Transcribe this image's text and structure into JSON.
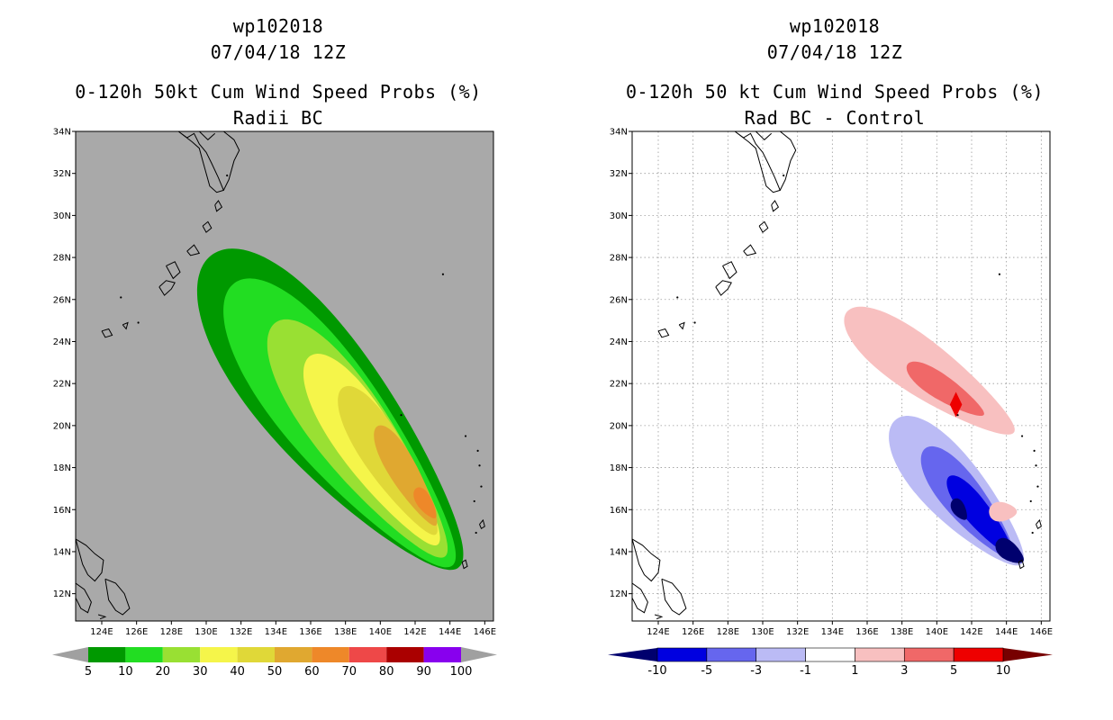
{
  "chart_data": [
    {
      "type": "heatmap",
      "storm_id": "wp102018",
      "datetime": "07/04/18 12Z",
      "title": "0-120h 50kt Cum Wind Speed Probs (%)",
      "subtitle": "Radii BC",
      "x_ticks": [
        "124E",
        "126E",
        "128E",
        "130E",
        "132E",
        "134E",
        "136E",
        "138E",
        "140E",
        "142E",
        "144E",
        "146E"
      ],
      "y_ticks": [
        "12N",
        "14N",
        "16N",
        "18N",
        "20N",
        "22N",
        "24N",
        "26N",
        "28N",
        "30N",
        "32N",
        "34N"
      ],
      "xlim": [
        122.5,
        146.5
      ],
      "ylim": [
        10.7,
        34
      ],
      "background_color": "#a9a9a9",
      "colorbar": {
        "labels": [
          "5",
          "10",
          "20",
          "30",
          "40",
          "50",
          "60",
          "70",
          "80",
          "90",
          "100"
        ],
        "colors": [
          "#009900",
          "#22dd22",
          "#99e033",
          "#f5f54a",
          "#e0d838",
          "#e0a830",
          "#ee8829",
          "#ee4848",
          "#aa0000",
          "#8800ee"
        ],
        "end_arrow_color": "#a0a0a0"
      },
      "contour_levels": [
        {
          "level": 5,
          "color": "#009900",
          "center": [
            137.3,
            20.6
          ],
          "half_len": 10.3,
          "half_wid": 3.2,
          "angle_deg": -45
        },
        {
          "level": 10,
          "color": "#22dd22",
          "center": [
            137.8,
            20.0
          ],
          "half_len": 9.2,
          "half_wid": 2.6,
          "angle_deg": -46
        },
        {
          "level": 20,
          "color": "#99e033",
          "center": [
            138.8,
            19.3
          ],
          "half_len": 7.4,
          "half_wid": 2.0,
          "angle_deg": -48
        },
        {
          "level": 30,
          "color": "#f5f54a",
          "center": [
            139.6,
            18.8
          ],
          "half_len": 5.8,
          "half_wid": 1.55,
          "angle_deg": -50
        },
        {
          "level": 40,
          "color": "#e0d838",
          "center": [
            140.5,
            18.3
          ],
          "half_len": 4.4,
          "half_wid": 1.15,
          "angle_deg": -52
        },
        {
          "level": 50,
          "color": "#e0a830",
          "center": [
            141.5,
            17.6
          ],
          "half_len": 2.9,
          "half_wid": 0.75,
          "angle_deg": -54
        },
        {
          "level": 60,
          "color": "#ee8829",
          "center": [
            142.6,
            16.3
          ],
          "half_len": 0.9,
          "half_wid": 0.4,
          "angle_deg": -50
        }
      ]
    },
    {
      "type": "heatmap",
      "storm_id": "wp102018",
      "datetime": "07/04/18 12Z",
      "title": "0-120h 50 kt Cum Wind Speed Probs (%)",
      "subtitle": "Rad BC - Control",
      "x_ticks": [
        "124E",
        "126E",
        "128E",
        "130E",
        "132E",
        "134E",
        "136E",
        "138E",
        "140E",
        "142E",
        "144E",
        "146E"
      ],
      "y_ticks": [
        "12N",
        "14N",
        "16N",
        "18N",
        "20N",
        "22N",
        "24N",
        "26N",
        "28N",
        "30N",
        "32N",
        "34N"
      ],
      "xlim": [
        122.5,
        146.5
      ],
      "ylim": [
        10.7,
        34
      ],
      "grid": "dotted",
      "background_color": "#ffffff",
      "colorbar": {
        "labels": [
          "-10",
          "-5",
          "-3",
          "-1",
          "1",
          "3",
          "5",
          "10"
        ],
        "colors": [
          "#0000e0",
          "#6666ee",
          "#bbbbf5",
          "#ffffff",
          "#f8c0c0",
          "#f06868",
          "#ee0000"
        ],
        "end_low_color": "#00006e",
        "end_high_color": "#770000"
      },
      "positive_lobes": [
        {
          "level": 1,
          "color": "#f8c0c0",
          "center": [
            139.6,
            22.5
          ],
          "half_len": 5.6,
          "half_wid": 1.35,
          "angle_deg": -30
        },
        {
          "level": 3,
          "color": "#f06868",
          "center": [
            140.5,
            21.7
          ],
          "half_len": 2.5,
          "half_wid": 0.6,
          "angle_deg": -28
        },
        {
          "level": 5,
          "color": "#ee0000",
          "center": [
            141.1,
            21.0
          ],
          "half_len": 0.35,
          "half_wid": 0.3,
          "angle_deg": 0
        },
        {
          "level": 1,
          "color": "#f8c0c0",
          "center": [
            143.8,
            15.9
          ],
          "half_len": 0.8,
          "half_wid": 0.45,
          "angle_deg": 0
        }
      ],
      "negative_lobes": [
        {
          "level": -1,
          "color": "#bbbbf5",
          "center": [
            141.2,
            16.8
          ],
          "half_len": 5.0,
          "half_wid": 1.6,
          "angle_deg": -42
        },
        {
          "level": -3,
          "color": "#6666ee",
          "center": [
            141.8,
            16.3
          ],
          "half_len": 3.6,
          "half_wid": 1.05,
          "angle_deg": -45
        },
        {
          "level": -5,
          "color": "#0000e0",
          "center": [
            142.5,
            15.7
          ],
          "half_len": 2.6,
          "half_wid": 0.65,
          "angle_deg": -45
        },
        {
          "level": -10,
          "color": "#00006e",
          "center": [
            141.3,
            16.0
          ],
          "half_len": 0.6,
          "half_wid": 0.35,
          "angle_deg": -50
        },
        {
          "level": -10,
          "color": "#00006e",
          "center": [
            144.2,
            14.0
          ],
          "half_len": 0.9,
          "half_wid": 0.45,
          "angle_deg": -30
        }
      ]
    }
  ]
}
